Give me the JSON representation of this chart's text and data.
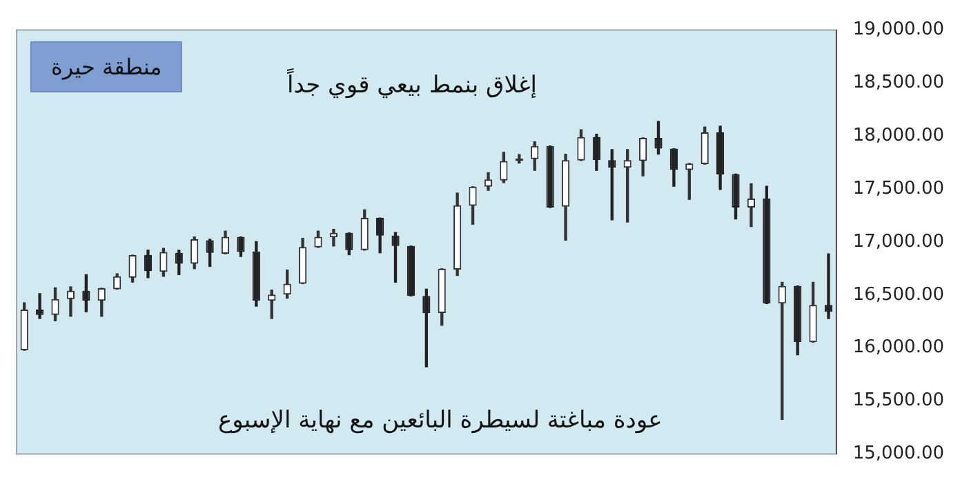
{
  "chart_data": {
    "type": "candlestick",
    "categories": [
      null,
      null,
      null,
      null,
      null,
      null,
      null,
      null,
      null,
      null,
      null,
      null,
      null,
      null,
      null,
      null,
      null,
      null,
      null,
      null,
      null,
      null,
      null,
      null,
      null,
      null,
      null,
      null,
      null,
      null,
      null,
      null,
      null,
      null,
      null,
      null,
      null,
      null,
      null,
      null,
      null,
      null,
      null,
      null,
      null,
      null,
      null,
      null,
      null,
      null,
      null,
      null,
      null
    ],
    "ohlc": [
      [
        15978,
        16427,
        15978,
        16363
      ],
      [
        16363,
        16513,
        16278,
        16312
      ],
      [
        16312,
        16568,
        16256,
        16462
      ],
      [
        16462,
        16577,
        16299,
        16539
      ],
      [
        16539,
        16692,
        16342,
        16445
      ],
      [
        16445,
        16564,
        16299,
        16564
      ],
      [
        16555,
        16700,
        16555,
        16676
      ],
      [
        16663,
        16876,
        16620,
        16876
      ],
      [
        16876,
        16923,
        16663,
        16727
      ],
      [
        16718,
        16940,
        16676,
        16906
      ],
      [
        16898,
        16923,
        16692,
        16795
      ],
      [
        16795,
        17048,
        16748,
        17026
      ],
      [
        17017,
        17026,
        16769,
        16898
      ],
      [
        16889,
        17103,
        16889,
        17048
      ],
      [
        17048,
        17048,
        16863,
        16906
      ],
      [
        16910,
        17004,
        16394,
        16445
      ],
      [
        16445,
        16547,
        16278,
        16504
      ],
      [
        16504,
        16735,
        16470,
        16607
      ],
      [
        16607,
        17035,
        16607,
        16953
      ],
      [
        16949,
        17103,
        16949,
        17048
      ],
      [
        17044,
        17120,
        16962,
        17086
      ],
      [
        17086,
        17086,
        16880,
        16923
      ],
      [
        16923,
        17304,
        16923,
        17227
      ],
      [
        17227,
        17227,
        16898,
        17060
      ],
      [
        17060,
        17090,
        16620,
        16962
      ],
      [
        16962,
        16962,
        16491,
        16491
      ],
      [
        16491,
        16555,
        15821,
        16330
      ],
      [
        16330,
        16748,
        16214,
        16748
      ],
      [
        16740,
        17462,
        16684,
        17346
      ],
      [
        17342,
        17522,
        17167,
        17522
      ],
      [
        17522,
        17654,
        17487,
        17590
      ],
      [
        17581,
        17846,
        17560,
        17765
      ],
      [
        17765,
        17825,
        17744,
        17787
      ],
      [
        17782,
        17945,
        17676,
        17906
      ],
      [
        17906,
        17906,
        17325,
        17325
      ],
      [
        17333,
        17829,
        17017,
        17773
      ],
      [
        17769,
        18060,
        17769,
        17991
      ],
      [
        17991,
        18017,
        17676,
        17773
      ],
      [
        17773,
        17872,
        17209,
        17701
      ],
      [
        17701,
        17872,
        17188,
        17773
      ],
      [
        17765,
        17983,
        17624,
        17983
      ],
      [
        17983,
        18137,
        17829,
        17881
      ],
      [
        17881,
        17881,
        17526,
        17680
      ],
      [
        17680,
        17740,
        17402,
        17740
      ],
      [
        17735,
        18086,
        17735,
        18035
      ],
      [
        18035,
        18094,
        17496,
        17637
      ],
      [
        17641,
        17641,
        17218,
        17325
      ],
      [
        17325,
        17551,
        17145,
        17410
      ],
      [
        17410,
        17526,
        16419,
        16419
      ],
      [
        16419,
        16620,
        15325,
        16586
      ],
      [
        16586,
        16586,
        15936,
        16055
      ],
      [
        16055,
        16620,
        16055,
        16406
      ],
      [
        16406,
        16889,
        16278,
        16342
      ]
    ],
    "ylim": [
      15000,
      19000
    ],
    "yticks": [
      {
        "value": 15000,
        "label": "15,000.00"
      },
      {
        "value": 15500,
        "label": "15,500.00"
      },
      {
        "value": 16000,
        "label": "16,000.00"
      },
      {
        "value": 16500,
        "label": "16,500.00"
      },
      {
        "value": 17000,
        "label": "17,000.00"
      },
      {
        "value": 17500,
        "label": "17,500.00"
      },
      {
        "value": 18000,
        "label": "18,000.00"
      },
      {
        "value": 18500,
        "label": "18,500.00"
      },
      {
        "value": 19000,
        "label": "19,000.00"
      }
    ],
    "grid": false,
    "legend": false,
    "tick_labels": "y",
    "annotations": [
      "منطقة حيرة",
      "إغلاق بنمط بيعي قوي جداً",
      "عودة مباغتة لسيطرة البائعين مع نهاية الإسبوع"
    ]
  }
}
